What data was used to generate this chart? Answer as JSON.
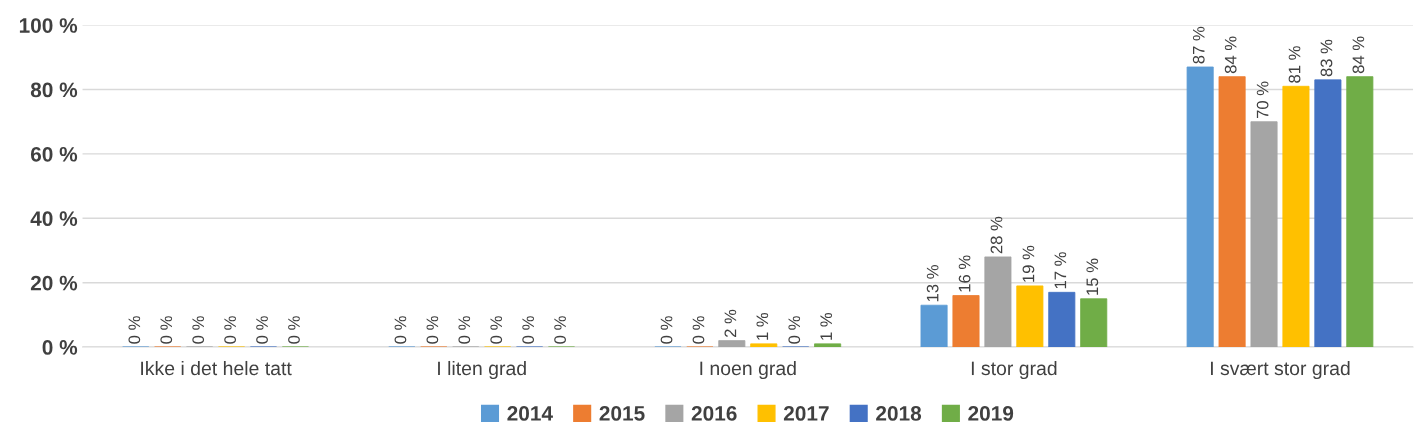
{
  "chart_data": {
    "type": "bar",
    "categories": [
      "Ikke i det hele tatt",
      "I liten grad",
      "I noen grad",
      "I stor grad",
      "I svært stor grad"
    ],
    "series": [
      {
        "name": "2014",
        "color": "#5b9bd5",
        "values": [
          0,
          0,
          0,
          13,
          87
        ],
        "value_labels": [
          "0 %",
          "0 %",
          "0 %",
          "13 %",
          "87 %"
        ]
      },
      {
        "name": "2015",
        "color": "#ed7d31",
        "values": [
          0,
          0,
          0,
          16,
          84
        ],
        "value_labels": [
          "0 %",
          "0 %",
          "0 %",
          "16 %",
          "84 %"
        ]
      },
      {
        "name": "2016",
        "color": "#a5a5a5",
        "values": [
          0,
          0,
          2,
          28,
          70
        ],
        "value_labels": [
          "0 %",
          "0 %",
          "2 %",
          "28 %",
          "70 %"
        ]
      },
      {
        "name": "2017",
        "color": "#ffc000",
        "values": [
          0,
          0,
          1,
          19,
          81
        ],
        "value_labels": [
          "0 %",
          "0 %",
          "1 %",
          "19 %",
          "81 %"
        ]
      },
      {
        "name": "2018",
        "color": "#4472c4",
        "values": [
          0,
          0,
          0,
          17,
          83
        ],
        "value_labels": [
          "0 %",
          "0 %",
          "0 %",
          "17 %",
          "83 %"
        ]
      },
      {
        "name": "2019",
        "color": "#70ad47",
        "values": [
          0,
          0,
          1,
          15,
          84
        ],
        "value_labels": [
          "0 %",
          "0 %",
          "1 %",
          "15 %",
          "84 %"
        ]
      }
    ],
    "ylim": [
      0,
      100
    ],
    "yticks": [
      {
        "value": 0,
        "label": "0 %"
      },
      {
        "value": 20,
        "label": "20 %"
      },
      {
        "value": 40,
        "label": "40 %"
      },
      {
        "value": 60,
        "label": "60 %"
      },
      {
        "value": 80,
        "label": "80 %"
      },
      {
        "value": 100,
        "label": "100 %"
      }
    ],
    "grid": "y",
    "legend": "bottom"
  }
}
